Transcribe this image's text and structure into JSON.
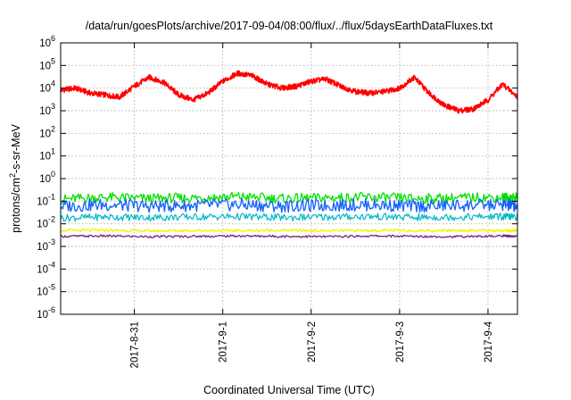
{
  "chart_data": {
    "type": "line",
    "title": "/data/run/goesPlots/archive/2017-09-04/08:00/flux/../flux/5daysEarthDataFluxes.txt",
    "xlabel": "Coordinated Universal Time (UTC)",
    "ylabel_prefix": "protons/cm",
    "ylabel_sup": "2",
    "ylabel_suffix": "-s-sr-MeV",
    "y_scale": "log",
    "ylim": [
      1e-06,
      1000000.0
    ],
    "y_ticks": [
      {
        "base": "10",
        "exp": "6",
        "value": 6
      },
      {
        "base": "10",
        "exp": "5",
        "value": 5
      },
      {
        "base": "10",
        "exp": "4",
        "value": 4
      },
      {
        "base": "10",
        "exp": "3",
        "value": 3
      },
      {
        "base": "10",
        "exp": "2",
        "value": 2
      },
      {
        "base": "10",
        "exp": "1",
        "value": 1
      },
      {
        "base": "10",
        "exp": "0",
        "value": 0
      },
      {
        "base": "10",
        "exp": "-1",
        "value": -1
      },
      {
        "base": "10",
        "exp": "-2",
        "value": -2
      },
      {
        "base": "10",
        "exp": "-3",
        "value": -3
      },
      {
        "base": "10",
        "exp": "-4",
        "value": -4
      },
      {
        "base": "10",
        "exp": "-5",
        "value": -5
      },
      {
        "base": "10",
        "exp": "-6",
        "value": -6
      }
    ],
    "xlim": [
      "2017-08-30 04:00",
      "2017-09-04 08:00"
    ],
    "x_ticks": [
      {
        "label": "2017-8-31",
        "datetime": "2017-08-31 00:00"
      },
      {
        "label": "2017-9-1",
        "datetime": "2017-09-01 00:00"
      },
      {
        "label": "2017-9-2",
        "datetime": "2017-09-02 00:00"
      },
      {
        "label": "2017-9-3",
        "datetime": "2017-09-03 00:00"
      },
      {
        "label": "2017-9-4",
        "datetime": "2017-09-04 00:00"
      }
    ],
    "grid": true,
    "legend": "none",
    "series": [
      {
        "color": "#ff0000",
        "x": [
          "2017-08-30 04:00",
          "2017-08-30 08:00",
          "2017-08-30 12:00",
          "2017-08-30 16:00",
          "2017-08-30 20:00",
          "2017-08-31 00:00",
          "2017-08-31 04:00",
          "2017-08-31 08:00",
          "2017-08-31 12:00",
          "2017-08-31 16:00",
          "2017-08-31 20:00",
          "2017-09-01 00:00",
          "2017-09-01 04:00",
          "2017-09-01 08:00",
          "2017-09-01 12:00",
          "2017-09-01 16:00",
          "2017-09-01 20:00",
          "2017-09-02 00:00",
          "2017-09-02 04:00",
          "2017-09-02 08:00",
          "2017-09-02 12:00",
          "2017-09-02 16:00",
          "2017-09-02 20:00",
          "2017-09-03 00:00",
          "2017-09-03 04:00",
          "2017-09-03 08:00",
          "2017-09-03 12:00",
          "2017-09-03 16:00",
          "2017-09-03 20:00",
          "2017-09-04 00:00",
          "2017-09-04 04:00",
          "2017-09-04 08:00"
        ],
        "y": [
          8000,
          10000,
          6000,
          5000,
          4000,
          12000,
          30000,
          18000,
          5000,
          3000,
          6000,
          20000,
          45000,
          35000,
          15000,
          10000,
          12000,
          20000,
          25000,
          12000,
          7000,
          6000,
          7000,
          10000,
          30000,
          6000,
          1800,
          1000,
          1200,
          3000,
          15000,
          4000
        ]
      },
      {
        "color": "#00e000",
        "x": [
          "2017-08-30 04:00",
          "2017-08-30 16:00",
          "2017-08-31 04:00",
          "2017-08-31 16:00",
          "2017-09-01 04:00",
          "2017-09-01 16:00",
          "2017-09-02 04:00",
          "2017-09-02 16:00",
          "2017-09-03 04:00",
          "2017-09-03 16:00",
          "2017-09-04 04:00",
          "2017-09-04 08:00"
        ],
        "y": [
          0.12,
          0.15,
          0.13,
          0.14,
          0.16,
          0.13,
          0.14,
          0.15,
          0.13,
          0.14,
          0.15,
          0.14
        ]
      },
      {
        "color": "#1060ff",
        "x": [
          "2017-08-30 04:00",
          "2017-08-30 16:00",
          "2017-08-31 04:00",
          "2017-08-31 16:00",
          "2017-09-01 04:00",
          "2017-09-01 16:00",
          "2017-09-02 04:00",
          "2017-09-02 16:00",
          "2017-09-03 04:00",
          "2017-09-03 16:00",
          "2017-09-04 04:00",
          "2017-09-04 08:00"
        ],
        "y": [
          0.06,
          0.07,
          0.06,
          0.065,
          0.07,
          0.06,
          0.065,
          0.07,
          0.06,
          0.065,
          0.07,
          0.06
        ]
      },
      {
        "color": "#00b8c8",
        "x": [
          "2017-08-30 04:00",
          "2017-08-30 16:00",
          "2017-08-31 04:00",
          "2017-08-31 16:00",
          "2017-09-01 04:00",
          "2017-09-01 16:00",
          "2017-09-02 04:00",
          "2017-09-02 16:00",
          "2017-09-03 04:00",
          "2017-09-03 16:00",
          "2017-09-04 04:00",
          "2017-09-04 08:00"
        ],
        "y": [
          0.018,
          0.02,
          0.019,
          0.02,
          0.021,
          0.019,
          0.02,
          0.021,
          0.019,
          0.02,
          0.021,
          0.02
        ]
      },
      {
        "color": "#f4f400",
        "x": [
          "2017-08-30 04:00",
          "2017-08-30 16:00",
          "2017-08-31 04:00",
          "2017-08-31 16:00",
          "2017-09-01 04:00",
          "2017-09-01 16:00",
          "2017-09-02 04:00",
          "2017-09-02 16:00",
          "2017-09-03 04:00",
          "2017-09-03 16:00",
          "2017-09-04 04:00",
          "2017-09-04 08:00"
        ],
        "y": [
          0.005,
          0.0052,
          0.0049,
          0.0051,
          0.005,
          0.0052,
          0.0049,
          0.0051,
          0.005,
          0.0052,
          0.0049,
          0.005
        ]
      },
      {
        "color": "#7a2080",
        "x": [
          "2017-08-30 04:00",
          "2017-08-30 16:00",
          "2017-08-31 04:00",
          "2017-08-31 16:00",
          "2017-09-01 04:00",
          "2017-09-01 16:00",
          "2017-09-02 04:00",
          "2017-09-02 16:00",
          "2017-09-03 04:00",
          "2017-09-03 16:00",
          "2017-09-04 04:00",
          "2017-09-04 08:00"
        ],
        "y": [
          0.0028,
          0.0029,
          0.0027,
          0.0028,
          0.0029,
          0.0028,
          0.0027,
          0.0029,
          0.0028,
          0.0027,
          0.0029,
          0.0028
        ]
      }
    ]
  }
}
